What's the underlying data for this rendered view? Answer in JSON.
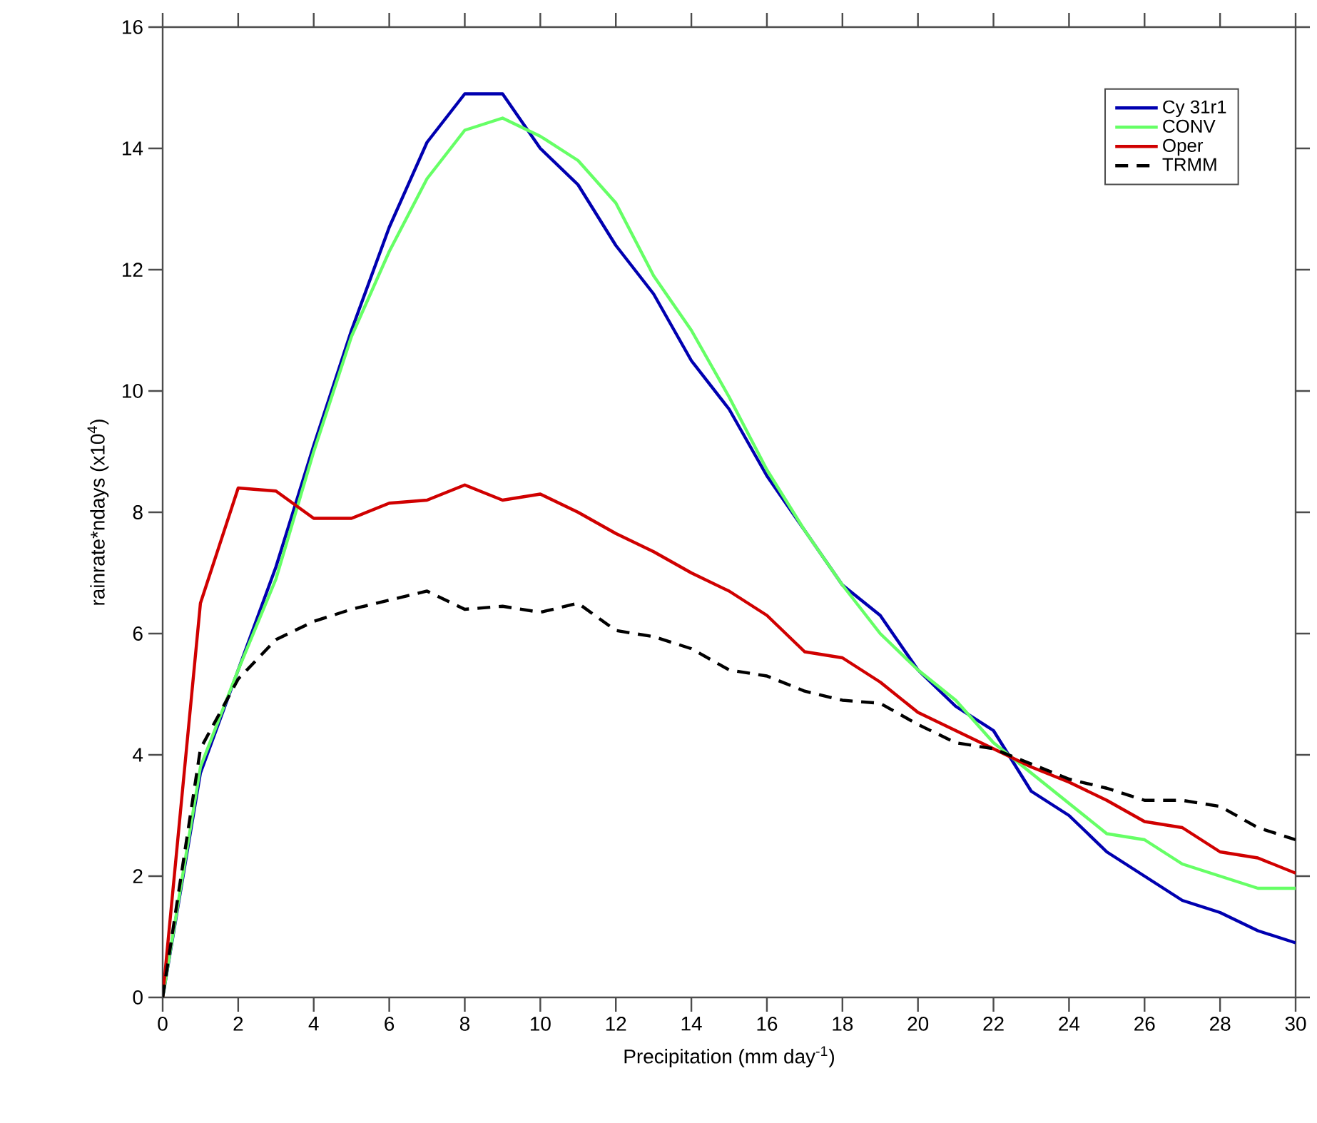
{
  "chart_data": {
    "type": "line",
    "xlabel": "Precipitation (mm day$^{-1}$)",
    "ylabel": "rainrate*ndays (x10$^{4}$)",
    "x": [
      0,
      1,
      2,
      3,
      4,
      5,
      6,
      7,
      8,
      9,
      10,
      11,
      12,
      13,
      14,
      15,
      16,
      17,
      18,
      19,
      20,
      21,
      22,
      23,
      24,
      25,
      26,
      27,
      28,
      29,
      30
    ],
    "series": [
      {
        "name": "Cy 31r1",
        "color": "#0000b0",
        "values": [
          0,
          3.7,
          5.4,
          7.1,
          9.1,
          11.0,
          12.7,
          14.1,
          14.9,
          14.9,
          14.0,
          13.4,
          12.4,
          11.6,
          10.5,
          9.7,
          8.6,
          7.7,
          6.8,
          6.3,
          5.4,
          4.8,
          4.4,
          3.4,
          3.0,
          2.4,
          2.0,
          1.6,
          1.4,
          1.1,
          0.9
        ]
      },
      {
        "name": "CONV",
        "color": "#66ff66",
        "values": [
          0,
          3.8,
          5.4,
          6.9,
          9.0,
          10.9,
          12.3,
          13.5,
          14.3,
          14.5,
          14.2,
          13.8,
          13.1,
          11.9,
          11.0,
          9.9,
          8.7,
          7.7,
          6.8,
          6.0,
          5.4,
          4.9,
          4.2,
          3.7,
          3.2,
          2.7,
          2.6,
          2.2,
          2.0,
          1.8,
          1.8
        ]
      },
      {
        "name": "Oper",
        "color": "#d00000",
        "values": [
          0,
          6.5,
          8.4,
          8.35,
          7.9,
          7.9,
          8.15,
          8.2,
          8.45,
          8.2,
          8.3,
          8.0,
          7.65,
          7.35,
          7.0,
          6.7,
          6.3,
          5.7,
          5.6,
          5.2,
          4.7,
          4.4,
          4.1,
          3.8,
          3.55,
          3.25,
          2.9,
          2.8,
          2.4,
          2.3,
          2.05
        ]
      },
      {
        "name": "TRMM",
        "color": "#000000",
        "line_style": "dashed",
        "values": [
          0,
          4.1,
          5.25,
          5.9,
          6.2,
          6.4,
          6.55,
          6.7,
          6.4,
          6.45,
          6.35,
          6.5,
          6.05,
          5.95,
          5.75,
          5.4,
          5.3,
          5.05,
          4.9,
          4.85,
          4.5,
          4.2,
          4.1,
          3.85,
          3.6,
          3.45,
          3.25,
          3.25,
          3.15,
          2.8,
          2.6
        ]
      }
    ],
    "xlim": [
      0,
      30
    ],
    "ylim": [
      0,
      16
    ],
    "xticks": [
      0,
      2,
      4,
      6,
      8,
      10,
      12,
      14,
      16,
      18,
      20,
      22,
      24,
      26,
      28,
      30
    ],
    "yticks": [
      0,
      2,
      4,
      6,
      8,
      10,
      12,
      14,
      16
    ],
    "grid": false,
    "legend": "top right",
    "marker": "none",
    "line_style": "solid"
  }
}
